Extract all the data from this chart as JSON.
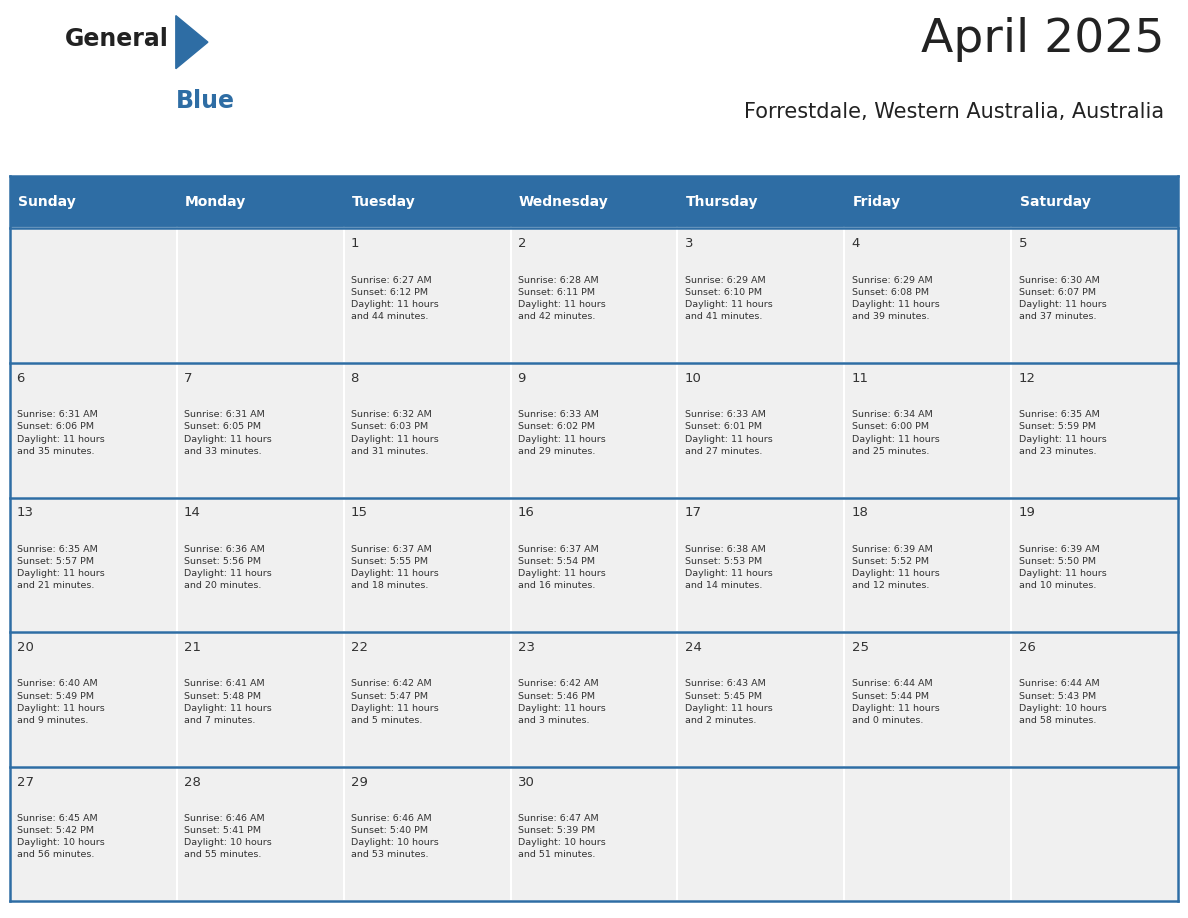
{
  "title": "April 2025",
  "subtitle": "Forrestdale, Western Australia, Australia",
  "header_bg_color": "#2E6DA4",
  "header_text_color": "#FFFFFF",
  "cell_bg_color": "#F0F0F0",
  "border_color": "#2E6DA4",
  "day_number_color": "#333333",
  "cell_text_color": "#333333",
  "days_of_week": [
    "Sunday",
    "Monday",
    "Tuesday",
    "Wednesday",
    "Thursday",
    "Friday",
    "Saturday"
  ],
  "weeks": [
    [
      {
        "day": "",
        "text": ""
      },
      {
        "day": "",
        "text": ""
      },
      {
        "day": "1",
        "text": "Sunrise: 6:27 AM\nSunset: 6:12 PM\nDaylight: 11 hours\nand 44 minutes."
      },
      {
        "day": "2",
        "text": "Sunrise: 6:28 AM\nSunset: 6:11 PM\nDaylight: 11 hours\nand 42 minutes."
      },
      {
        "day": "3",
        "text": "Sunrise: 6:29 AM\nSunset: 6:10 PM\nDaylight: 11 hours\nand 41 minutes."
      },
      {
        "day": "4",
        "text": "Sunrise: 6:29 AM\nSunset: 6:08 PM\nDaylight: 11 hours\nand 39 minutes."
      },
      {
        "day": "5",
        "text": "Sunrise: 6:30 AM\nSunset: 6:07 PM\nDaylight: 11 hours\nand 37 minutes."
      }
    ],
    [
      {
        "day": "6",
        "text": "Sunrise: 6:31 AM\nSunset: 6:06 PM\nDaylight: 11 hours\nand 35 minutes."
      },
      {
        "day": "7",
        "text": "Sunrise: 6:31 AM\nSunset: 6:05 PM\nDaylight: 11 hours\nand 33 minutes."
      },
      {
        "day": "8",
        "text": "Sunrise: 6:32 AM\nSunset: 6:03 PM\nDaylight: 11 hours\nand 31 minutes."
      },
      {
        "day": "9",
        "text": "Sunrise: 6:33 AM\nSunset: 6:02 PM\nDaylight: 11 hours\nand 29 minutes."
      },
      {
        "day": "10",
        "text": "Sunrise: 6:33 AM\nSunset: 6:01 PM\nDaylight: 11 hours\nand 27 minutes."
      },
      {
        "day": "11",
        "text": "Sunrise: 6:34 AM\nSunset: 6:00 PM\nDaylight: 11 hours\nand 25 minutes."
      },
      {
        "day": "12",
        "text": "Sunrise: 6:35 AM\nSunset: 5:59 PM\nDaylight: 11 hours\nand 23 minutes."
      }
    ],
    [
      {
        "day": "13",
        "text": "Sunrise: 6:35 AM\nSunset: 5:57 PM\nDaylight: 11 hours\nand 21 minutes."
      },
      {
        "day": "14",
        "text": "Sunrise: 6:36 AM\nSunset: 5:56 PM\nDaylight: 11 hours\nand 20 minutes."
      },
      {
        "day": "15",
        "text": "Sunrise: 6:37 AM\nSunset: 5:55 PM\nDaylight: 11 hours\nand 18 minutes."
      },
      {
        "day": "16",
        "text": "Sunrise: 6:37 AM\nSunset: 5:54 PM\nDaylight: 11 hours\nand 16 minutes."
      },
      {
        "day": "17",
        "text": "Sunrise: 6:38 AM\nSunset: 5:53 PM\nDaylight: 11 hours\nand 14 minutes."
      },
      {
        "day": "18",
        "text": "Sunrise: 6:39 AM\nSunset: 5:52 PM\nDaylight: 11 hours\nand 12 minutes."
      },
      {
        "day": "19",
        "text": "Sunrise: 6:39 AM\nSunset: 5:50 PM\nDaylight: 11 hours\nand 10 minutes."
      }
    ],
    [
      {
        "day": "20",
        "text": "Sunrise: 6:40 AM\nSunset: 5:49 PM\nDaylight: 11 hours\nand 9 minutes."
      },
      {
        "day": "21",
        "text": "Sunrise: 6:41 AM\nSunset: 5:48 PM\nDaylight: 11 hours\nand 7 minutes."
      },
      {
        "day": "22",
        "text": "Sunrise: 6:42 AM\nSunset: 5:47 PM\nDaylight: 11 hours\nand 5 minutes."
      },
      {
        "day": "23",
        "text": "Sunrise: 6:42 AM\nSunset: 5:46 PM\nDaylight: 11 hours\nand 3 minutes."
      },
      {
        "day": "24",
        "text": "Sunrise: 6:43 AM\nSunset: 5:45 PM\nDaylight: 11 hours\nand 2 minutes."
      },
      {
        "day": "25",
        "text": "Sunrise: 6:44 AM\nSunset: 5:44 PM\nDaylight: 11 hours\nand 0 minutes."
      },
      {
        "day": "26",
        "text": "Sunrise: 6:44 AM\nSunset: 5:43 PM\nDaylight: 10 hours\nand 58 minutes."
      }
    ],
    [
      {
        "day": "27",
        "text": "Sunrise: 6:45 AM\nSunset: 5:42 PM\nDaylight: 10 hours\nand 56 minutes."
      },
      {
        "day": "28",
        "text": "Sunrise: 6:46 AM\nSunset: 5:41 PM\nDaylight: 10 hours\nand 55 minutes."
      },
      {
        "day": "29",
        "text": "Sunrise: 6:46 AM\nSunset: 5:40 PM\nDaylight: 10 hours\nand 53 minutes."
      },
      {
        "day": "30",
        "text": "Sunrise: 6:47 AM\nSunset: 5:39 PM\nDaylight: 10 hours\nand 51 minutes."
      },
      {
        "day": "",
        "text": ""
      },
      {
        "day": "",
        "text": ""
      },
      {
        "day": "",
        "text": ""
      }
    ]
  ]
}
